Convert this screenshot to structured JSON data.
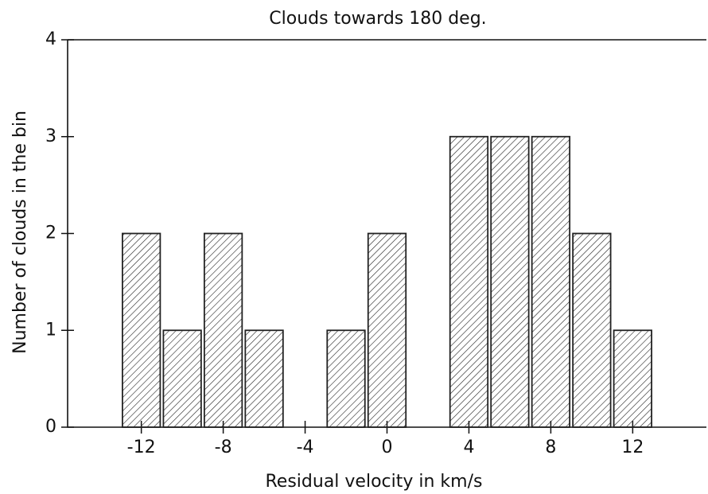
{
  "chart_data": {
    "type": "histogram",
    "title": "Clouds towards 180 deg.",
    "x_label": "Residual velocity in km/s",
    "y_label": "Number of clouds in the bin",
    "bins": [
      -13,
      -11,
      -9,
      -7,
      -5,
      -3,
      -1,
      1,
      3,
      5,
      7,
      9,
      11,
      13
    ],
    "values": [
      2,
      1,
      2,
      1,
      0,
      1,
      2,
      0,
      3,
      3,
      3,
      2,
      1
    ],
    "xlim": [
      -15.6,
      15.6
    ],
    "xticks": [
      -12,
      -8,
      -4,
      0,
      4,
      8,
      12
    ],
    "ylim": [
      0,
      4
    ],
    "yticks": [
      0,
      1,
      2,
      3,
      4
    ],
    "color": "#222222",
    "grid": false
  }
}
